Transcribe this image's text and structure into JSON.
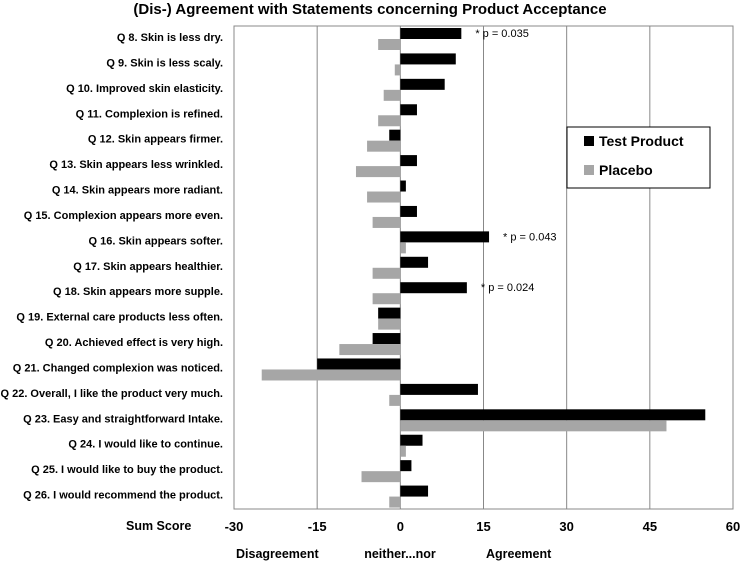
{
  "chart_data": {
    "type": "bar",
    "orientation": "horizontal",
    "title": "(Dis-) Agreement with Statements concerning Product Acceptance",
    "xlabel": "Sum Score",
    "xlim": [
      -30,
      60
    ],
    "xticks": [
      -30,
      -15,
      0,
      15,
      30,
      45,
      60
    ],
    "grid": true,
    "legend_position": "right",
    "categories": [
      "Q 8. Skin is less dry.",
      "Q 9. Skin is less scaly.",
      "Q 10. Improved skin elasticity.",
      "Q 11. Complexion is refined.",
      "Q 12. Skin appears firmer.",
      "Q 13. Skin appears less wrinkled.",
      "Q 14. Skin appears more radiant.",
      "Q 15. Complexion appears more even.",
      "Q 16. Skin appears softer.",
      "Q 17. Skin appears healthier.",
      "Q 18. Skin appears more supple.",
      "Q 19. External care products less often.",
      "Q 20. Achieved effect is very high.",
      "Q 21. Changed complexion was noticed.",
      "Q 22. Overall, I like the product very much.",
      "Q 23. Easy and straightforward Intake.",
      "Q 24. I would like to continue.",
      "Q 25. I would like to buy the product.",
      "Q 26. I would recommend the product."
    ],
    "series": [
      {
        "name": "Test Product",
        "color": "#000000",
        "values": [
          11,
          10,
          8,
          3,
          -2,
          3,
          1,
          3,
          16,
          5,
          12,
          -4,
          -5,
          -15,
          14,
          55,
          4,
          2,
          5
        ]
      },
      {
        "name": "Placebo",
        "color": "#a6a6a6",
        "values": [
          -4,
          -1,
          -3,
          -4,
          -6,
          -8,
          -6,
          -5,
          1,
          -5,
          -5,
          -4,
          -11,
          -25,
          -2,
          48,
          1,
          -7,
          -2
        ]
      }
    ],
    "annotations": [
      {
        "category_index": 0,
        "text": "* p = 0.035"
      },
      {
        "category_index": 8,
        "text": "* p  = 0.043"
      },
      {
        "category_index": 10,
        "text": "* p = 0.024"
      }
    ],
    "bottom_labels": [
      "Disagreement",
      "neither...nor",
      "Agreement"
    ]
  }
}
